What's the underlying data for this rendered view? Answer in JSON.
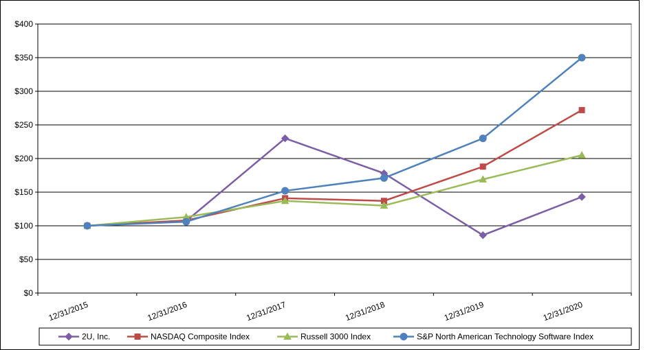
{
  "chart_data": {
    "type": "line",
    "categories": [
      "12/31/2015",
      "12/31/2016",
      "12/31/2017",
      "12/31/2018",
      "12/31/2019",
      "12/31/2020"
    ],
    "series": [
      {
        "name": "2U, Inc.",
        "color": "#7b5ea7",
        "marker": "diamond",
        "values": [
          100,
          107,
          230,
          178,
          86,
          143
        ]
      },
      {
        "name": "NASDAQ Composite Index",
        "color": "#be4b48",
        "marker": "square",
        "values": [
          100,
          108,
          141,
          137,
          188,
          272
        ]
      },
      {
        "name": "Russell 3000 Index",
        "color": "#9bbb59",
        "marker": "triangle",
        "values": [
          100,
          113,
          137,
          130,
          169,
          205
        ]
      },
      {
        "name": "S&P North American Technology Software Index",
        "color": "#4f81bd",
        "marker": "circle",
        "values": [
          100,
          106,
          152,
          171,
          230,
          350
        ]
      }
    ],
    "ylim": [
      0,
      400
    ],
    "yticks": [
      {
        "value": 0,
        "label": "$0"
      },
      {
        "value": 50,
        "label": "$50"
      },
      {
        "value": 100,
        "label": "$100"
      },
      {
        "value": 150,
        "label": "$150"
      },
      {
        "value": 200,
        "label": "$200"
      },
      {
        "value": 250,
        "label": "$250"
      },
      {
        "value": 300,
        "label": "$300"
      },
      {
        "value": 350,
        "label": "$350"
      },
      {
        "value": 400,
        "label": "$400"
      }
    ],
    "grid": true,
    "legend": "bottom"
  }
}
